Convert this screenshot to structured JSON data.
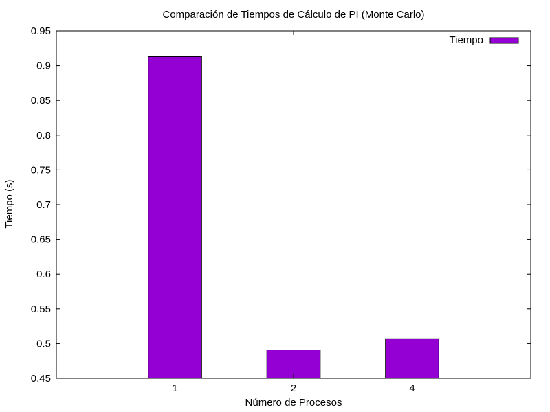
{
  "chart_data": {
    "type": "bar",
    "title": "Comparación de Tiempos de Cálculo de PI (Monte Carlo)",
    "xlabel": "Número de Procesos",
    "ylabel": "Tiempo (s)",
    "categories": [
      "1",
      "2",
      "4"
    ],
    "series": [
      {
        "name": "Tiempo",
        "values": [
          0.913,
          0.491,
          0.507
        ],
        "color": "#9400d3"
      }
    ],
    "ylim": [
      0.45,
      0.95
    ],
    "yticks": [
      "0.45",
      "0.5",
      "0.55",
      "0.6",
      "0.65",
      "0.7",
      "0.75",
      "0.8",
      "0.85",
      "0.9",
      "0.95"
    ],
    "grid": false,
    "legend_position": "top-right"
  }
}
